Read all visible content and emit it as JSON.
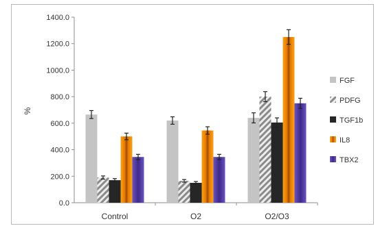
{
  "chart_data": {
    "type": "bar",
    "title": "",
    "xlabel": "",
    "ylabel": "%",
    "ylim": [
      0,
      1400
    ],
    "yticks": [
      "0.0",
      "200.0",
      "400.0",
      "600.0",
      "800.0",
      "1000.0",
      "1200.0",
      "1400.0"
    ],
    "categories": [
      "Control",
      "O2",
      "O2/O3"
    ],
    "grid": false,
    "legend_position": "right",
    "error_bars": true,
    "series": [
      {
        "name": "FGF",
        "color": "#c4c4c4",
        "pattern": "solid",
        "values": [
          665,
          620,
          640
        ],
        "errors": [
          30,
          28,
          38
        ]
      },
      {
        "name": "PDFG",
        "color": "#a8a8a8",
        "pattern": "hatched",
        "values": [
          190,
          165,
          800
        ],
        "errors": [
          12,
          10,
          38
        ]
      },
      {
        "name": "TGF1b",
        "color": "#262626",
        "pattern": "solid",
        "values": [
          170,
          150,
          605
        ],
        "errors": [
          12,
          10,
          35
        ]
      },
      {
        "name": "IL8",
        "color": "#f28a0a",
        "pattern": "gradient",
        "values": [
          500,
          545,
          1250
        ],
        "errors": [
          25,
          28,
          55
        ]
      },
      {
        "name": "TBX2",
        "color": "#5a3fa8",
        "pattern": "solid",
        "values": [
          345,
          345,
          750
        ],
        "errors": [
          20,
          20,
          38
        ]
      }
    ]
  }
}
